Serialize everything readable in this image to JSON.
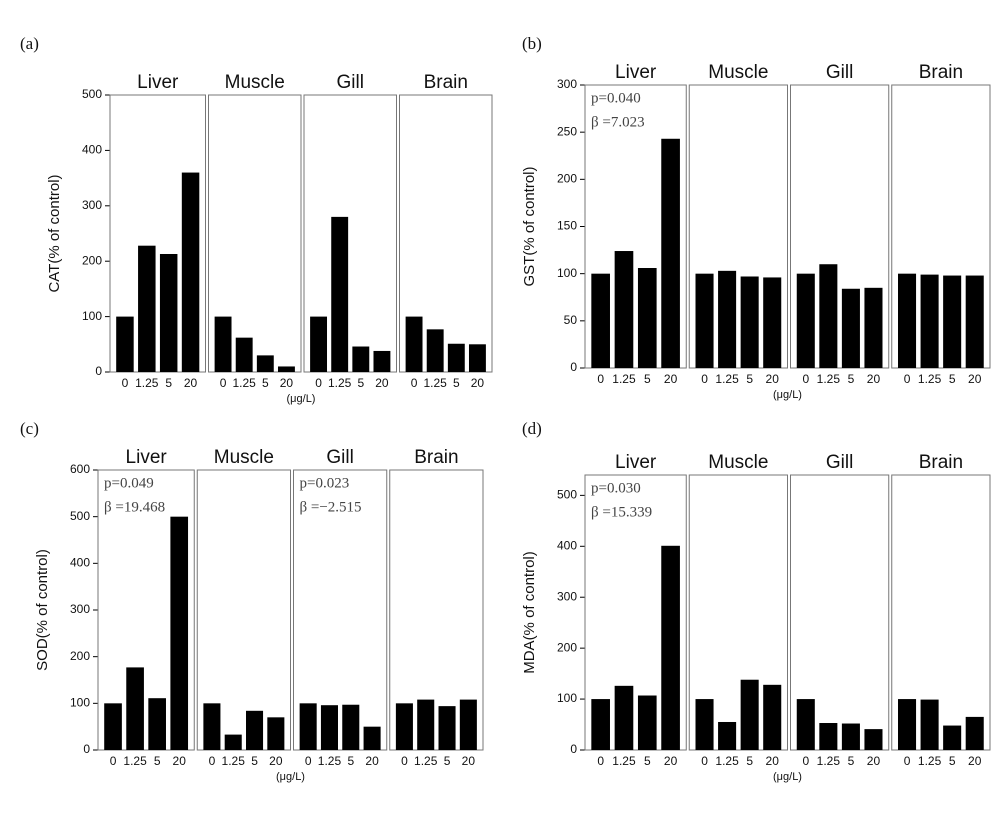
{
  "chart_data": [
    {
      "type": "bar",
      "panel_label": "(a)",
      "y_label": "CAT(% of control)",
      "x_unit": "(μg/L)",
      "color": "#000000",
      "ylim": [
        0,
        500
      ],
      "yticks": [
        0,
        100,
        200,
        300,
        400,
        500
      ],
      "categories": [
        "0",
        "1.25",
        "5",
        "20"
      ],
      "groups": [
        {
          "name": "Liver",
          "values": [
            100,
            228,
            213,
            360
          ]
        },
        {
          "name": "Muscle",
          "values": [
            100,
            62,
            30,
            10
          ]
        },
        {
          "name": "Gill",
          "values": [
            100,
            280,
            46,
            38
          ]
        },
        {
          "name": "Brain",
          "values": [
            100,
            77,
            51,
            50
          ]
        }
      ]
    },
    {
      "type": "bar",
      "panel_label": "(b)",
      "y_label": "GST(% of control)",
      "x_unit": "(μg/L)",
      "color": "#000000",
      "ylim": [
        0,
        300
      ],
      "yticks": [
        0,
        50,
        100,
        150,
        200,
        250,
        300
      ],
      "categories": [
        "0",
        "1.25",
        "5",
        "20"
      ],
      "groups": [
        {
          "name": "Liver",
          "values": [
            100,
            124,
            106,
            243
          ],
          "annotations": [
            "p=0.040",
            "β =7.023"
          ]
        },
        {
          "name": "Muscle",
          "values": [
            100,
            103,
            97,
            96
          ]
        },
        {
          "name": "Gill",
          "values": [
            100,
            110,
            84,
            85
          ]
        },
        {
          "name": "Brain",
          "values": [
            100,
            99,
            98,
            98
          ]
        }
      ]
    },
    {
      "type": "bar",
      "panel_label": "(c)",
      "y_label": "SOD(% of control)",
      "x_unit": "(μg/L)",
      "color": "#000000",
      "ylim": [
        0,
        600
      ],
      "yticks": [
        0,
        100,
        200,
        300,
        400,
        500,
        600
      ],
      "categories": [
        "0",
        "1.25",
        "5",
        "20"
      ],
      "groups": [
        {
          "name": "Liver",
          "values": [
            100,
            177,
            111,
            500
          ],
          "annotations": [
            "p=0.049",
            "β =19.468"
          ]
        },
        {
          "name": "Muscle",
          "values": [
            100,
            33,
            84,
            70
          ]
        },
        {
          "name": "Gill",
          "values": [
            100,
            96,
            97,
            50
          ],
          "annotations": [
            "p=0.023",
            "β =−2.515"
          ]
        },
        {
          "name": "Brain",
          "values": [
            100,
            108,
            94,
            108
          ]
        }
      ]
    },
    {
      "type": "bar",
      "panel_label": "(d)",
      "y_label": "MDA(% of control)",
      "x_unit": "(μg/L)",
      "color": "#000000",
      "ylim": [
        0,
        540
      ],
      "yticks": [
        0,
        100,
        200,
        300,
        400,
        500
      ],
      "categories": [
        "0",
        "1.25",
        "5",
        "20"
      ],
      "groups": [
        {
          "name": "Liver",
          "values": [
            100,
            126,
            107,
            401
          ],
          "annotations": [
            "p=0.030",
            "β =15.339"
          ]
        },
        {
          "name": "Muscle",
          "values": [
            100,
            55,
            138,
            128
          ]
        },
        {
          "name": "Gill",
          "values": [
            100,
            53,
            52,
            41
          ]
        },
        {
          "name": "Brain",
          "values": [
            100,
            99,
            48,
            65
          ]
        }
      ]
    }
  ]
}
